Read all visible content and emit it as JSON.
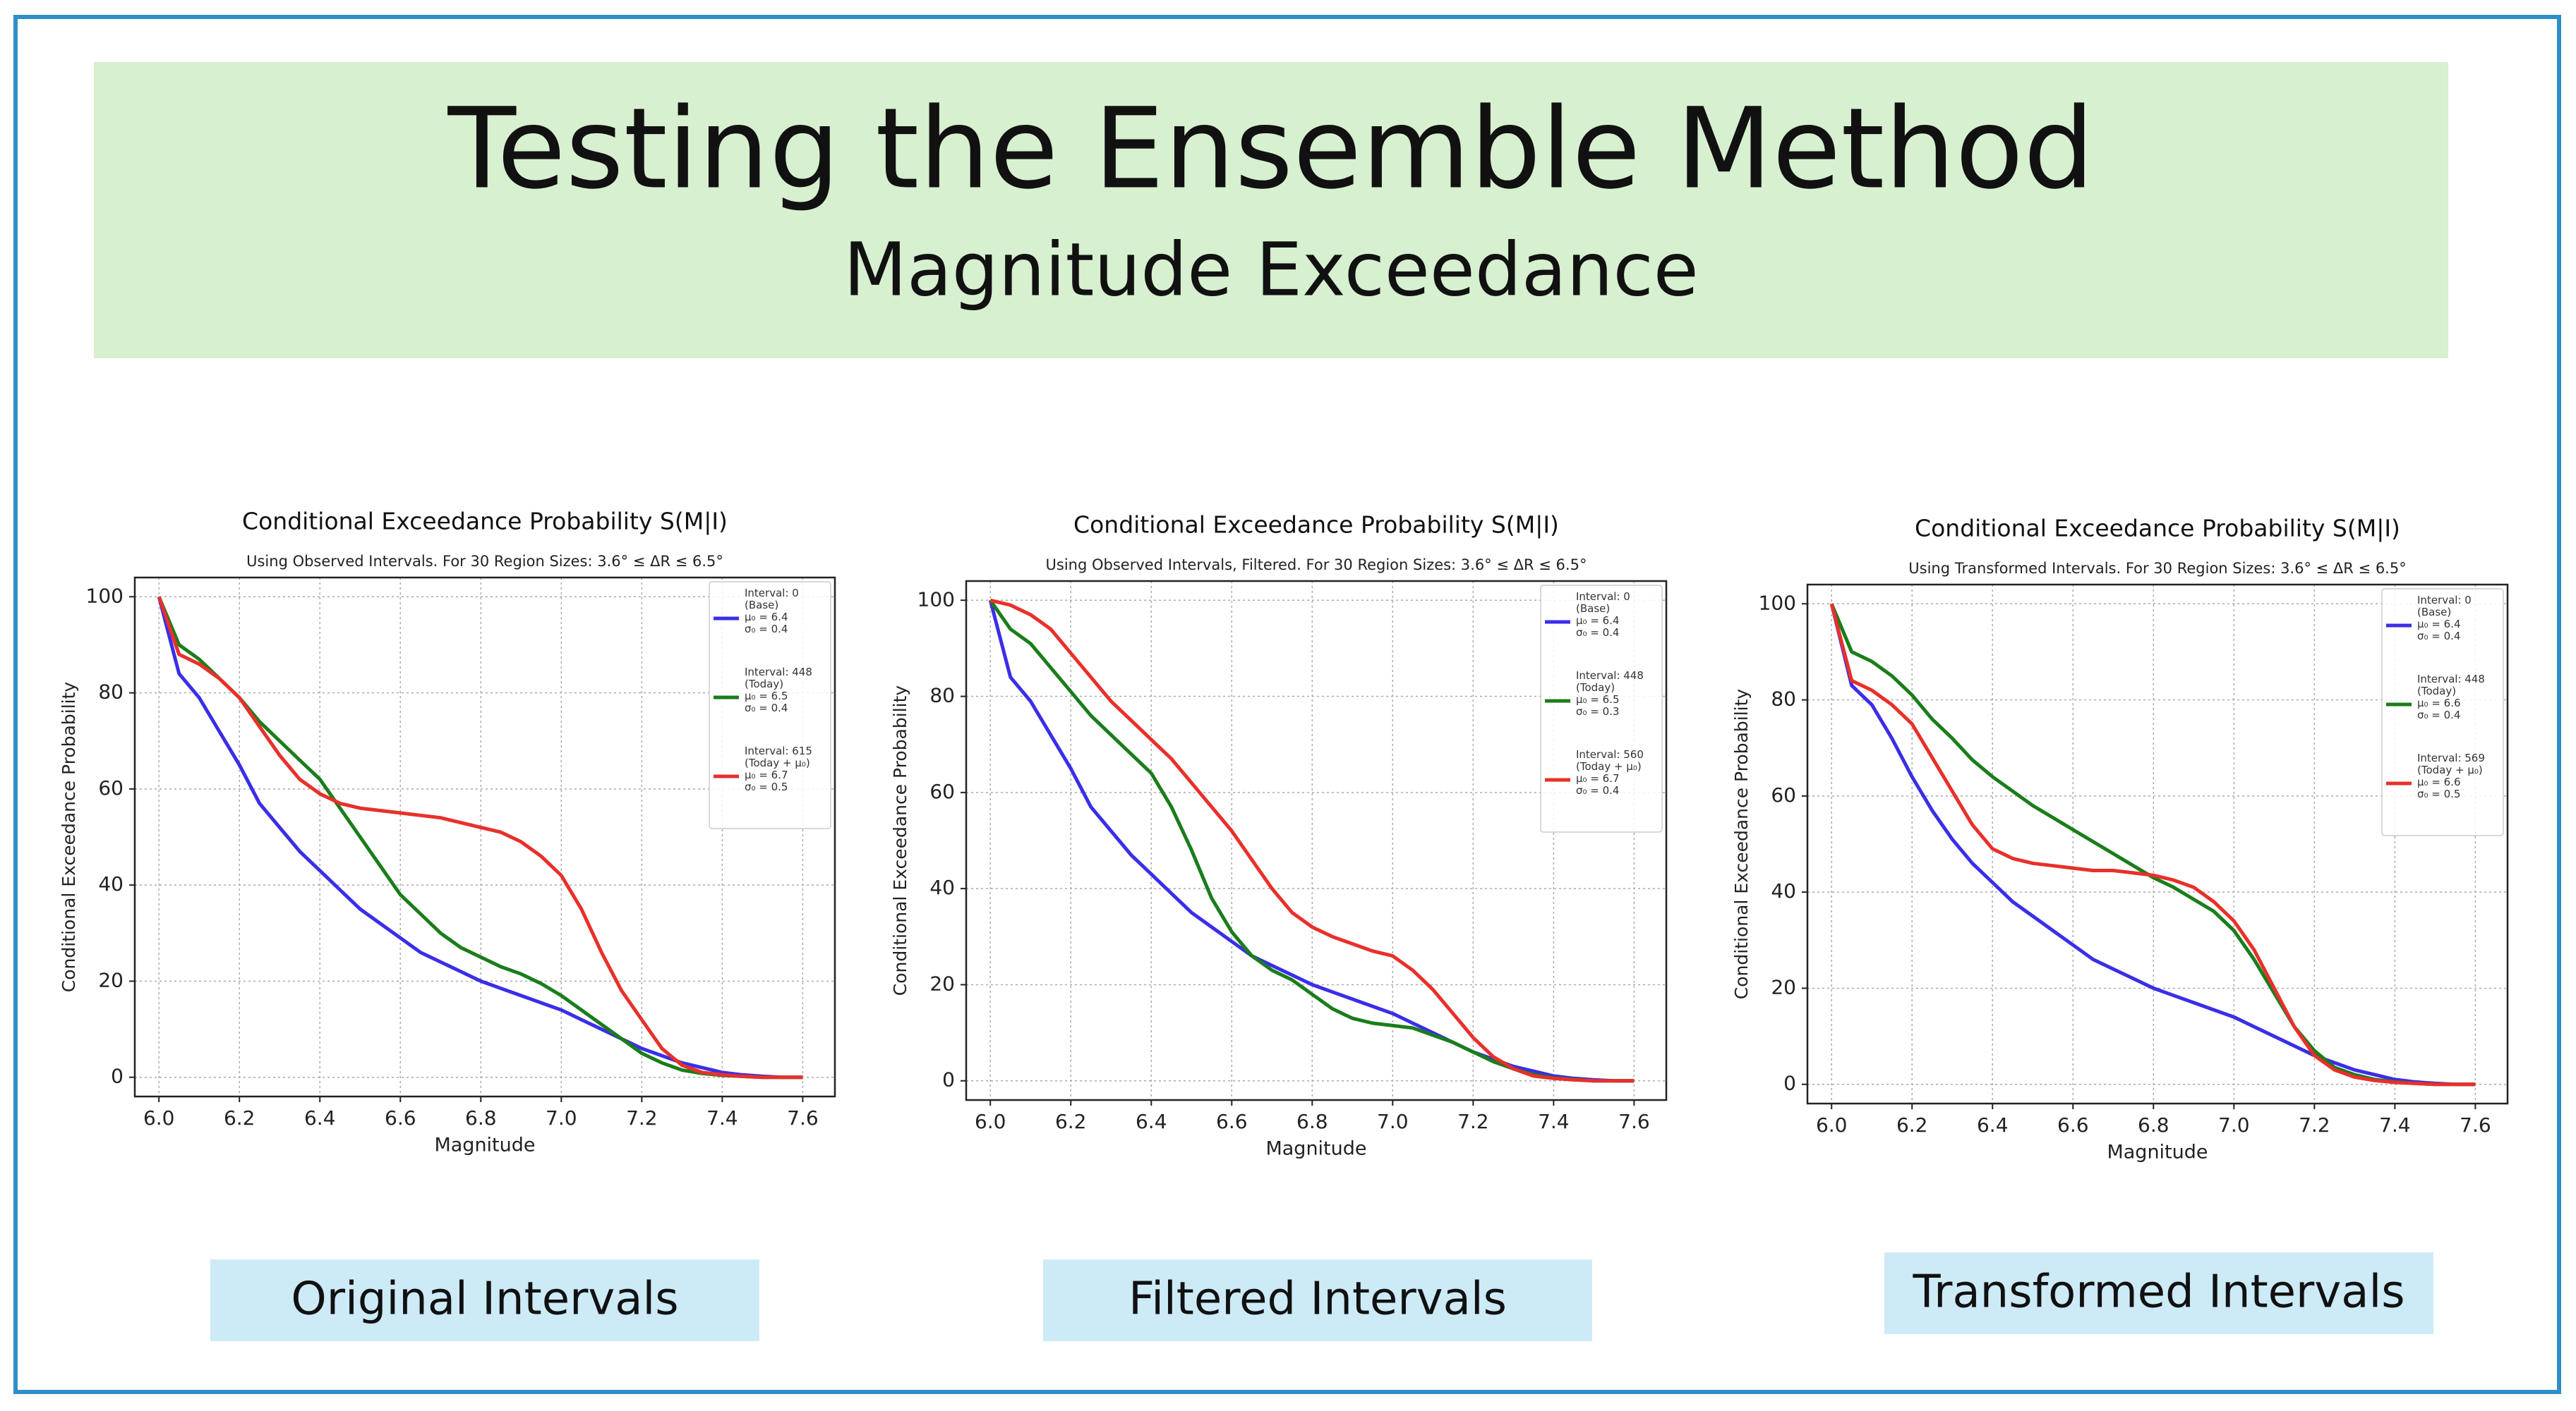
{
  "header": {
    "title": "Testing the Ensemble Method",
    "subtitle": "Magnitude Exceedance"
  },
  "chart_data": [
    {
      "type": "line",
      "title": "Conditional Exceedance Probability S(M|I)",
      "subtitle": "Using Observed Intervals.  For 30 Region Sizes: 3.6° ≤ ΔR ≤ 6.5°",
      "x_label": "Magnitude",
      "y_label": "Conditional Exceedance Probability",
      "caption": "Original Intervals",
      "grid": true,
      "legend": "upper right",
      "xlim": [
        5.94,
        7.68
      ],
      "ylim": [
        -4,
        104
      ],
      "xticks": [
        {
          "value": 6,
          "label": "6.0"
        },
        6.2,
        6.4,
        6.6,
        6.8,
        {
          "value": 7,
          "label": "7.0"
        },
        7.2,
        7.4,
        7.6
      ],
      "yticks": [
        0,
        20,
        40,
        60,
        80,
        100
      ],
      "x": [
        6.0,
        6.05,
        6.1,
        6.15,
        6.2,
        6.25,
        6.3,
        6.35,
        6.4,
        6.45,
        6.5,
        6.55,
        6.6,
        6.65,
        6.7,
        6.75,
        6.8,
        6.85,
        6.9,
        6.95,
        7.0,
        7.05,
        7.1,
        7.15,
        7.2,
        7.25,
        7.3,
        7.35,
        7.4,
        7.45,
        7.5,
        7.55,
        7.6
      ],
      "series": [
        {
          "name": "Interval: 0\n(Base)\nμ₀ = 6.4\nσ₀ = 0.4",
          "color": "#3a2ee8",
          "values": [
            100,
            84,
            79,
            72,
            65,
            57,
            52,
            47,
            43,
            39,
            35,
            32,
            29,
            26,
            24,
            22,
            20,
            18.5,
            17,
            15.5,
            14,
            12,
            10,
            8,
            6,
            4.5,
            3,
            2,
            1,
            0.5,
            0.2,
            0,
            0
          ]
        },
        {
          "name": "Interval: 448\n(Today)\nμ₀ = 6.5\nσ₀ = 0.4",
          "color": "#1a7d1a",
          "values": [
            100,
            90,
            87,
            83,
            79,
            74,
            70,
            66,
            62,
            56,
            50,
            44,
            38,
            34,
            30,
            27,
            25,
            23,
            21.5,
            19.5,
            17,
            14,
            11,
            8,
            5,
            3,
            1.5,
            0.8,
            0.4,
            0.2,
            0,
            0,
            0
          ]
        },
        {
          "name": "Interval: 615\n(Today + μ₀)\nμ₀ = 6.7\nσ₀ = 0.5",
          "color": "#e8302a",
          "values": [
            100,
            88,
            86,
            83,
            79,
            73,
            67,
            62,
            59,
            57,
            56,
            55.5,
            55,
            54.5,
            54,
            53,
            52,
            51,
            49,
            46,
            42,
            35,
            26,
            18,
            12,
            6,
            2.5,
            1,
            0.5,
            0.2,
            0,
            0,
            0
          ]
        }
      ]
    },
    {
      "type": "line",
      "title": "Conditional Exceedance Probability S(M|I)",
      "subtitle": "Using Observed Intervals, Filtered.  For 30 Region Sizes: 3.6° ≤ ΔR ≤ 6.5°",
      "x_label": "Magnitude",
      "y_label": "Conditional Exceedance Probability",
      "caption": "Filtered Intervals",
      "grid": true,
      "legend": "upper right",
      "xlim": [
        5.94,
        7.68
      ],
      "ylim": [
        -4,
        104
      ],
      "xticks": [
        {
          "value": 6,
          "label": "6.0"
        },
        6.2,
        6.4,
        6.6,
        6.8,
        {
          "value": 7,
          "label": "7.0"
        },
        7.2,
        7.4,
        7.6
      ],
      "yticks": [
        0,
        20,
        40,
        60,
        80,
        100
      ],
      "x": [
        6.0,
        6.05,
        6.1,
        6.15,
        6.2,
        6.25,
        6.3,
        6.35,
        6.4,
        6.45,
        6.5,
        6.55,
        6.6,
        6.65,
        6.7,
        6.75,
        6.8,
        6.85,
        6.9,
        6.95,
        7.0,
        7.05,
        7.1,
        7.15,
        7.2,
        7.25,
        7.3,
        7.35,
        7.4,
        7.45,
        7.5,
        7.55,
        7.6
      ],
      "series": [
        {
          "name": "Interval: 0\n(Base)\nμ₀ = 6.4\nσ₀ = 0.4",
          "color": "#3a2ee8",
          "values": [
            100,
            84,
            79,
            72,
            65,
            57,
            52,
            47,
            43,
            39,
            35,
            32,
            29,
            26,
            24,
            22,
            20,
            18.5,
            17,
            15.5,
            14,
            12,
            10,
            8,
            6,
            4.5,
            3,
            2,
            1,
            0.5,
            0.2,
            0,
            0
          ]
        },
        {
          "name": "Interval: 448\n(Today)\nμ₀ = 6.5\nσ₀ = 0.3",
          "color": "#1a7d1a",
          "values": [
            100,
            94,
            91,
            86,
            81,
            76,
            72,
            68,
            64,
            57,
            48,
            38,
            31,
            26,
            23,
            21,
            18,
            15,
            13,
            12,
            11.5,
            11,
            9.5,
            8,
            6,
            4,
            2.5,
            1.3,
            0.6,
            0.3,
            0,
            0,
            0
          ]
        },
        {
          "name": "Interval: 560\n(Today + μ₀)\nμ₀ = 6.7\nσ₀ = 0.4",
          "color": "#e8302a",
          "values": [
            100,
            99,
            97,
            94,
            89,
            84,
            79,
            75,
            71,
            67,
            62,
            57,
            52,
            46,
            40,
            35,
            32,
            30,
            28.5,
            27,
            26,
            23,
            19,
            14,
            9,
            5,
            2.5,
            1,
            0.5,
            0.2,
            0,
            0,
            0
          ]
        }
      ]
    },
    {
      "type": "line",
      "title": "Conditional Exceedance Probability S(M|I)",
      "subtitle": "Using Transformed Intervals.  For 30 Region Sizes: 3.6° ≤ ΔR ≤ 6.5°",
      "x_label": "Magnitude",
      "y_label": "Conditional Exceedance Probability",
      "caption": "Transformed Intervals",
      "grid": true,
      "legend": "upper right",
      "xlim": [
        5.94,
        7.68
      ],
      "ylim": [
        -4,
        104
      ],
      "xticks": [
        {
          "value": 6,
          "label": "6.0"
        },
        6.2,
        6.4,
        6.6,
        6.8,
        {
          "value": 7,
          "label": "7.0"
        },
        7.2,
        7.4,
        7.6
      ],
      "yticks": [
        0,
        20,
        40,
        60,
        80,
        100
      ],
      "x": [
        6.0,
        6.05,
        6.1,
        6.15,
        6.2,
        6.25,
        6.3,
        6.35,
        6.4,
        6.45,
        6.5,
        6.55,
        6.6,
        6.65,
        6.7,
        6.75,
        6.8,
        6.85,
        6.9,
        6.95,
        7.0,
        7.05,
        7.1,
        7.15,
        7.2,
        7.25,
        7.3,
        7.35,
        7.4,
        7.45,
        7.5,
        7.55,
        7.6
      ],
      "series": [
        {
          "name": "Interval: 0\n(Base)\nμ₀ = 6.4\nσ₀ = 0.4",
          "color": "#3a2ee8",
          "values": [
            100,
            83,
            79,
            72,
            64,
            57,
            51,
            46,
            42,
            38,
            35,
            32,
            29,
            26,
            24,
            22,
            20,
            18.5,
            17,
            15.5,
            14,
            12,
            10,
            8,
            6,
            4.5,
            3,
            2,
            1,
            0.5,
            0.2,
            0,
            0
          ]
        },
        {
          "name": "Interval: 448\n(Today)\nμ₀ = 6.6\nσ₀ = 0.4",
          "color": "#1a7d1a",
          "values": [
            100,
            90,
            88,
            85,
            81,
            76,
            72,
            67.5,
            64,
            61,
            58,
            55.5,
            53,
            50.5,
            48,
            45.5,
            43,
            41,
            38.5,
            36,
            32,
            26,
            19,
            12,
            7,
            3.5,
            2,
            1,
            0.5,
            0.2,
            0,
            0,
            0
          ]
        },
        {
          "name": "Interval: 569\n(Today + μ₀)\nμ₀ = 6.6\nσ₀ = 0.5",
          "color": "#e8302a",
          "values": [
            100,
            84,
            82,
            79,
            75,
            68,
            61,
            54,
            49,
            47,
            46,
            45.5,
            45,
            44.5,
            44.5,
            44,
            43.5,
            42.5,
            41,
            38,
            34,
            28,
            20,
            12,
            6,
            3,
            1.5,
            0.8,
            0.4,
            0.2,
            0,
            0,
            0
          ]
        }
      ]
    }
  ]
}
